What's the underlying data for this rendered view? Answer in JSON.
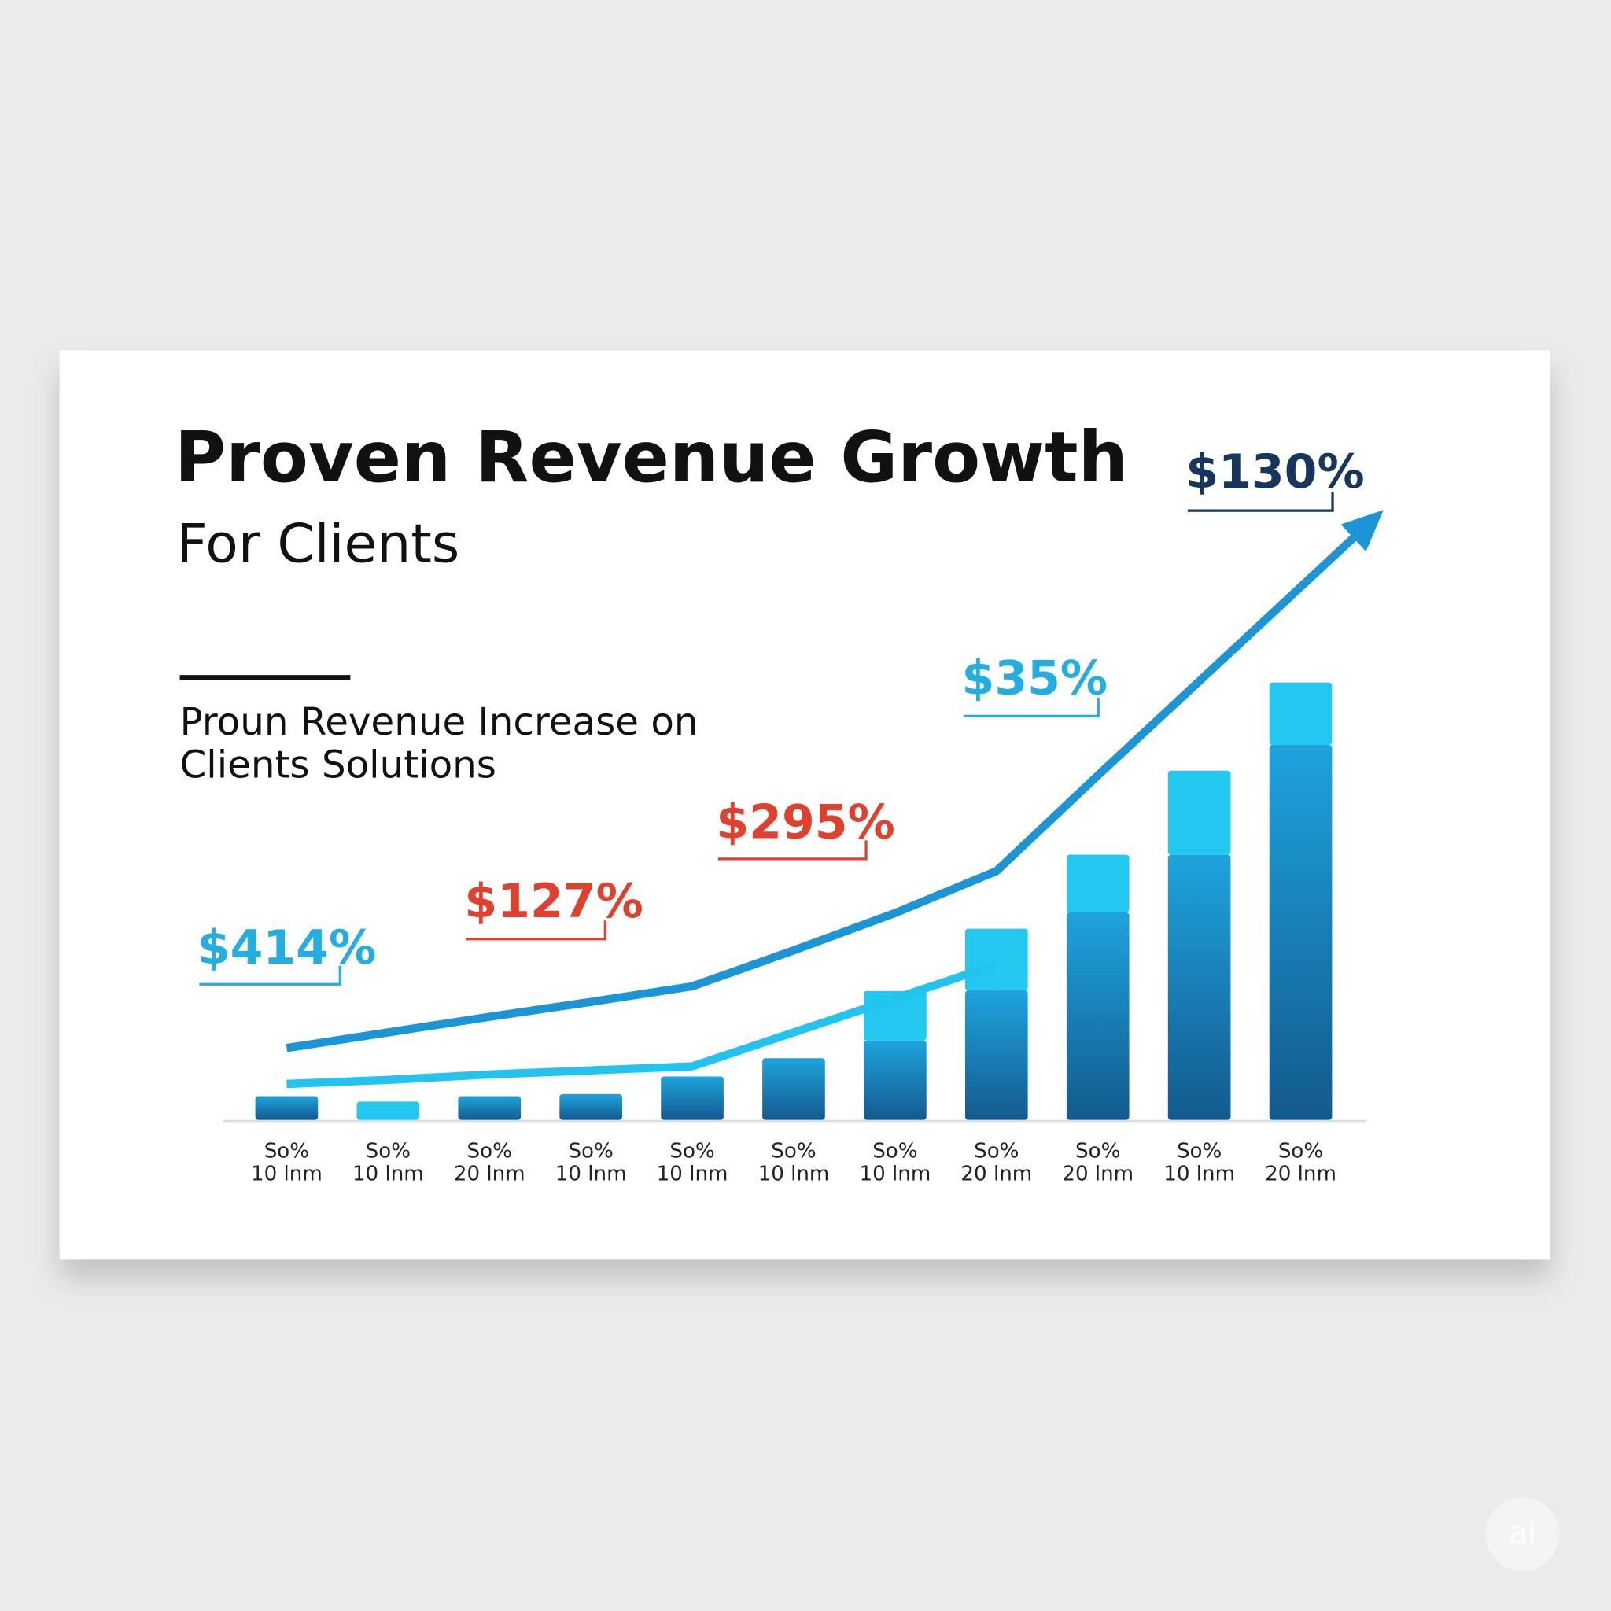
{
  "chart_data": {
    "type": "bar",
    "title": "Proven Revenue Growth",
    "subtitle": "For Clients",
    "description": [
      "Proun Revenue Increase on",
      "Clients Solutions"
    ],
    "categories": [
      [
        "So%",
        "10 lnm"
      ],
      [
        "So%",
        "10 lnm"
      ],
      [
        "So%",
        "20 lnm"
      ],
      [
        "So%",
        "10 lnm"
      ],
      [
        "So%",
        "10 lnm"
      ],
      [
        "So%",
        "10 lnm"
      ],
      [
        "So%",
        "10 lnm"
      ],
      [
        "So%",
        "20 lnm"
      ],
      [
        "So%",
        "20 lnm"
      ],
      [
        "So%",
        "10 lnm"
      ],
      [
        "So%",
        "20 lnm"
      ]
    ],
    "ylim": [
      0,
      100
    ],
    "series": [
      {
        "color": "#1a7fc0",
        "values": [
          3.5,
          0,
          3.5,
          3.8,
          6.4,
          9.1,
          11.7,
          19.1,
          30.6,
          39.1,
          55.3
        ]
      },
      {
        "color": "#22c8f0",
        "values": [
          null,
          2.7,
          null,
          null,
          null,
          null,
          7.3,
          9.1,
          8.5,
          12.4,
          9.2
        ]
      }
    ],
    "lines": [
      {
        "color": "#1b95d6",
        "values": [
          10.6,
          12.9,
          15.2,
          17.4,
          19.7,
          25,
          30.5,
          36.7,
          50.8,
          64.7,
          78.6
        ]
      },
      {
        "color": "#22c3ef",
        "values": [
          5.3,
          5.9,
          6.7,
          7.3,
          7.9,
          12.9,
          17.9,
          22.9,
          null,
          null,
          null
        ]
      }
    ],
    "annotations": [
      {
        "text": "$414%",
        "color": "#22aee0"
      },
      {
        "text": "$127%",
        "color": "#e0412f"
      },
      {
        "text": "$295%",
        "color": "#e0412f"
      },
      {
        "text": "$35%",
        "color": "#22aee0"
      },
      {
        "text": "$130%",
        "color": "#16365e"
      }
    ],
    "watermark": "ai"
  }
}
